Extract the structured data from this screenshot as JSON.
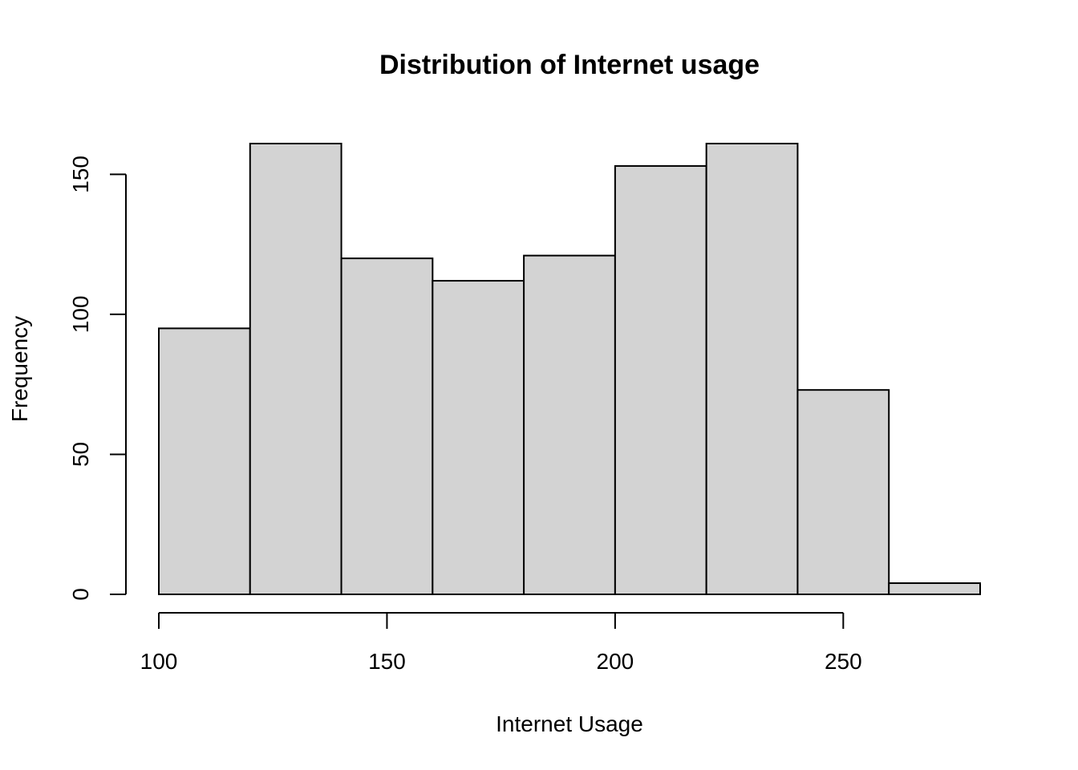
{
  "chart_data": {
    "type": "histogram",
    "title": "Distribution of Internet usage",
    "xlabel": "Internet Usage",
    "ylabel": "Frequency",
    "bin_edges": [
      100,
      120,
      140,
      160,
      180,
      200,
      220,
      240,
      260,
      280
    ],
    "counts": [
      95,
      161,
      120,
      112,
      121,
      153,
      161,
      73,
      4
    ],
    "xlim": [
      100,
      280
    ],
    "ylim": [
      0,
      161
    ],
    "x_ticks": [
      100,
      150,
      200,
      250
    ],
    "y_ticks": [
      0,
      50,
      100,
      150
    ],
    "x_tick_labels": [
      "100",
      "150",
      "200",
      "250"
    ],
    "y_tick_labels": [
      "0",
      "50",
      "100",
      "150"
    ],
    "bar_color": "#d3d3d3",
    "border_color": "#000000",
    "grid": false,
    "legend": "none"
  }
}
